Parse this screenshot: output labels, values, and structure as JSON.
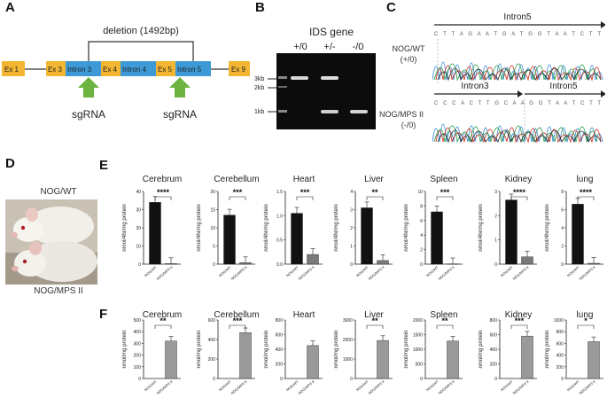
{
  "panels": {
    "a": "A",
    "b": "B",
    "c": "C",
    "d": "D",
    "e": "E",
    "f": "F"
  },
  "panel_a": {
    "deletion_label": "deletion (1492bp)",
    "exons": {
      "ex1": "Ex 1",
      "ex3": "Ex 3",
      "intron3": "Intron 3",
      "ex4": "Ex 4",
      "intron4": "Intron 4",
      "ex5": "Ex 5",
      "intron5": "Intron 5",
      "ex9": "Ex 9"
    },
    "sgrna": [
      "sgRNA",
      "sgRNA"
    ],
    "colors": {
      "exon": "#f2b632",
      "intron": "#3d9ad6",
      "arrow": "#6cb33f"
    }
  },
  "panel_b": {
    "title": "IDS gene",
    "lanes": [
      "+/0",
      "+/-",
      "-/0"
    ],
    "markers": [
      "3kb",
      "2kb",
      "1kb"
    ]
  },
  "panel_c": {
    "top_region": "Intron5",
    "top_sequence": "C T T A G A A T G A T G G T A A T C T T",
    "top_label_1": "NOG/WT",
    "top_label_2": "(+/0)",
    "bottom_region_1": "Intron3",
    "bottom_region_2": "Intron5",
    "bottom_sequence": "C C C A C T T G C A A G G T A A T C T T",
    "bottom_label_1": "NOG/MPS II",
    "bottom_label_2": "(-/0)"
  },
  "panel_d": {
    "label_top": "NOG/WT",
    "label_bottom": "NOG/MPS II"
  },
  "colors": {
    "wt_bar": "#111111",
    "mps_bar_e": "#7a7a7a",
    "mps_bar_f": "#9a9a9a"
  },
  "panel_e": {
    "ylabel": "nmol/4hr/mg protein",
    "xticks": [
      "NOG/WT",
      "NOG/MPS II"
    ],
    "charts": [
      {
        "title": "Cerebrum",
        "yticks": [
          "0",
          "10",
          "20",
          "30",
          "40"
        ],
        "ymax": 40,
        "values": [
          34,
          0.3
        ],
        "sig": "****"
      },
      {
        "title": "Cerebellum",
        "yticks": [
          "0",
          "5",
          "10",
          "15",
          "20"
        ],
        "ymax": 20,
        "values": [
          13.5,
          0.4
        ],
        "sig": "***"
      },
      {
        "title": "Heart",
        "yticks": [
          "0.0",
          "0.5",
          "1.0",
          "1.5"
        ],
        "ymax": 1.5,
        "values": [
          1.05,
          0.2
        ],
        "sig": "***"
      },
      {
        "title": "Liver",
        "yticks": [
          "0",
          "1",
          "2",
          "3",
          "4"
        ],
        "ymax": 4,
        "values": [
          3.1,
          0.2
        ],
        "sig": "**"
      },
      {
        "title": "Spleen",
        "yticks": [
          "0",
          "2",
          "4",
          "6",
          "8",
          "10"
        ],
        "ymax": 10,
        "values": [
          7.2,
          0.05
        ],
        "sig": "***"
      },
      {
        "title": "Kidney",
        "yticks": [
          "0",
          "1",
          "2",
          "3"
        ],
        "ymax": 3,
        "values": [
          2.65,
          0.3
        ],
        "sig": "****"
      },
      {
        "title": "lung",
        "yticks": [
          "0",
          "2",
          "4",
          "6",
          "8"
        ],
        "ymax": 8,
        "values": [
          6.6,
          0.1
        ],
        "sig": "****"
      }
    ]
  },
  "panel_f": {
    "ylabel": "nmol/mg protein",
    "xticks": [
      "NOG/WT",
      "NOG/MPS II"
    ],
    "charts": [
      {
        "title": "Cerebrum",
        "yticks": [
          "0",
          "100",
          "200",
          "300",
          "400",
          "500"
        ],
        "ymax": 500,
        "values": [
          0,
          320
        ],
        "sig": "**"
      },
      {
        "title": "Cerebellum",
        "yticks": [
          "0",
          "200",
          "400",
          "600"
        ],
        "ymax": 600,
        "values": [
          0,
          470
        ],
        "sig": "***"
      },
      {
        "title": "Heart",
        "yticks": [
          "0",
          "200",
          "400",
          "600",
          "800"
        ],
        "ymax": 800,
        "values": [
          0,
          450
        ],
        "sig": ""
      },
      {
        "title": "Liver",
        "yticks": [
          "0",
          "1000",
          "2000",
          "3000"
        ],
        "ymax": 3000,
        "values": [
          0,
          1950
        ],
        "sig": "**"
      },
      {
        "title": "Spleen",
        "yticks": [
          "0",
          "500",
          "1000",
          "1500",
          "2000"
        ],
        "ymax": 2000,
        "values": [
          0,
          1280
        ],
        "sig": "**"
      },
      {
        "title": "Kidney",
        "yticks": [
          "0",
          "200",
          "400",
          "600",
          "800"
        ],
        "ymax": 800,
        "values": [
          0,
          580
        ],
        "sig": "***"
      },
      {
        "title": "lung",
        "yticks": [
          "0",
          "200",
          "400",
          "600",
          "800",
          "1000"
        ],
        "ymax": 1000,
        "values": [
          0,
          630
        ],
        "sig": "*"
      }
    ]
  },
  "chart_data": [
    {
      "type": "bar",
      "title": "Cerebrum",
      "categories": [
        "NOG/WT",
        "NOG/MPS II"
      ],
      "values": [
        34,
        0.3
      ],
      "ylabel": "nmol/4hr/mg protein",
      "ylim": [
        0,
        40
      ]
    },
    {
      "type": "bar",
      "title": "Cerebellum",
      "categories": [
        "NOG/WT",
        "NOG/MPS II"
      ],
      "values": [
        13.5,
        0.4
      ],
      "ylabel": "nmol/4hr/mg protein",
      "ylim": [
        0,
        20
      ]
    },
    {
      "type": "bar",
      "title": "Heart",
      "categories": [
        "NOG/WT",
        "NOG/MPS II"
      ],
      "values": [
        1.05,
        0.2
      ],
      "ylabel": "nmol/4hr/mg protein",
      "ylim": [
        0,
        1.5
      ]
    },
    {
      "type": "bar",
      "title": "Liver",
      "categories": [
        "NOG/WT",
        "NOG/MPS II"
      ],
      "values": [
        3.1,
        0.2
      ],
      "ylabel": "nmol/4hr/mg protein",
      "ylim": [
        0,
        4
      ]
    },
    {
      "type": "bar",
      "title": "Spleen",
      "categories": [
        "NOG/WT",
        "NOG/MPS II"
      ],
      "values": [
        7.2,
        0.05
      ],
      "ylabel": "nmol/4hr/mg protein",
      "ylim": [
        0,
        10
      ]
    },
    {
      "type": "bar",
      "title": "Kidney",
      "categories": [
        "NOG/WT",
        "NOG/MPS II"
      ],
      "values": [
        2.65,
        0.3
      ],
      "ylabel": "nmol/4hr/mg protein",
      "ylim": [
        0,
        3
      ]
    },
    {
      "type": "bar",
      "title": "lung",
      "categories": [
        "NOG/WT",
        "NOG/MPS II"
      ],
      "values": [
        6.6,
        0.1
      ],
      "ylabel": "nmol/4hr/mg protein",
      "ylim": [
        0,
        8
      ]
    },
    {
      "type": "bar",
      "title": "Cerebrum",
      "categories": [
        "NOG/WT",
        "NOG/MPS II"
      ],
      "values": [
        0,
        320
      ],
      "ylabel": "nmol/mg protein",
      "ylim": [
        0,
        500
      ]
    },
    {
      "type": "bar",
      "title": "Cerebellum",
      "categories": [
        "NOG/WT",
        "NOG/MPS II"
      ],
      "values": [
        0,
        470
      ],
      "ylabel": "nmol/mg protein",
      "ylim": [
        0,
        600
      ]
    },
    {
      "type": "bar",
      "title": "Heart",
      "categories": [
        "NOG/WT",
        "NOG/MPS II"
      ],
      "values": [
        0,
        450
      ],
      "ylabel": "nmol/mg protein",
      "ylim": [
        0,
        800
      ]
    },
    {
      "type": "bar",
      "title": "Liver",
      "categories": [
        "NOG/WT",
        "NOG/MPS II"
      ],
      "values": [
        0,
        1950
      ],
      "ylabel": "nmol/mg protein",
      "ylim": [
        0,
        3000
      ]
    },
    {
      "type": "bar",
      "title": "Spleen",
      "categories": [
        "NOG/WT",
        "NOG/MPS II"
      ],
      "values": [
        0,
        1280
      ],
      "ylabel": "nmol/mg protein",
      "ylim": [
        0,
        2000
      ]
    },
    {
      "type": "bar",
      "title": "Kidney",
      "categories": [
        "NOG/WT",
        "NOG/MPS II"
      ],
      "values": [
        0,
        580
      ],
      "ylabel": "nmol/mg protein",
      "ylim": [
        0,
        800
      ]
    },
    {
      "type": "bar",
      "title": "lung",
      "categories": [
        "NOG/WT",
        "NOG/MPS II"
      ],
      "values": [
        0,
        630
      ],
      "ylabel": "nmol/mg protein",
      "ylim": [
        0,
        1000
      ]
    }
  ]
}
